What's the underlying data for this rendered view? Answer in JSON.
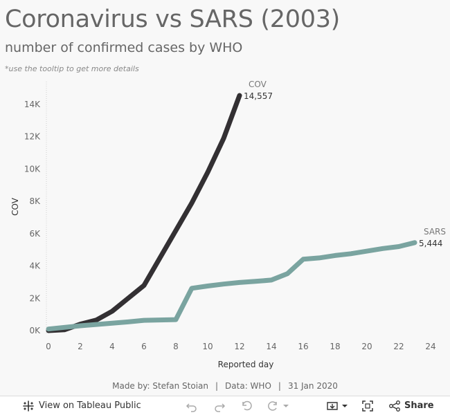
{
  "header": {
    "title": "Coronavirus vs SARS (2003)",
    "subtitle": "number of confirmed cases by WHO",
    "note": "*use the tooltip to get more details"
  },
  "chart_data": {
    "type": "line",
    "xlabel": "Reported day",
    "ylabel": "COV",
    "x_ticks": [
      "0",
      "2",
      "4",
      "6",
      "8",
      "10",
      "12",
      "14",
      "16",
      "18",
      "20",
      "22",
      "24"
    ],
    "y_ticks": [
      "0K",
      "2K",
      "4K",
      "6K",
      "8K",
      "10K",
      "12K",
      "14K"
    ],
    "xlim": [
      0,
      24
    ],
    "ylim": [
      0,
      14557
    ],
    "series": [
      {
        "name": "COV",
        "color": "#333033",
        "end_label": "COV",
        "end_value": "14,557",
        "x": [
          0,
          1,
          2,
          3,
          4,
          5,
          6,
          7,
          8,
          9,
          10,
          11,
          12
        ],
        "values": [
          0,
          50,
          400,
          650,
          1200,
          2000,
          2800,
          4500,
          6200,
          7900,
          9800,
          11900,
          14557
        ]
      },
      {
        "name": "SARS",
        "color": "#7aa4a0",
        "end_label": "SARS",
        "end_value": "5,444",
        "x": [
          0,
          1,
          2,
          3,
          4,
          5,
          6,
          7,
          8,
          9,
          10,
          11,
          12,
          13,
          14,
          15,
          16,
          17,
          18,
          19,
          20,
          21,
          22,
          23
        ],
        "values": [
          100,
          200,
          300,
          380,
          460,
          540,
          640,
          660,
          680,
          2620,
          2760,
          2880,
          2980,
          3050,
          3130,
          3520,
          4420,
          4500,
          4650,
          4760,
          4920,
          5080,
          5200,
          5444
        ]
      }
    ]
  },
  "credits": {
    "made_by": "Made by: Stefan Stoian",
    "data_source": "Data: WHO",
    "date": "31 Jan 2020",
    "separator": "|"
  },
  "toolbar": {
    "view_label": "View on Tableau Public",
    "share_label": "Share",
    "icons": [
      "tableau-logo-icon",
      "undo-icon",
      "redo-icon",
      "revert-icon",
      "refresh-icon",
      "download-icon",
      "fullscreen-icon",
      "share-icon"
    ]
  }
}
